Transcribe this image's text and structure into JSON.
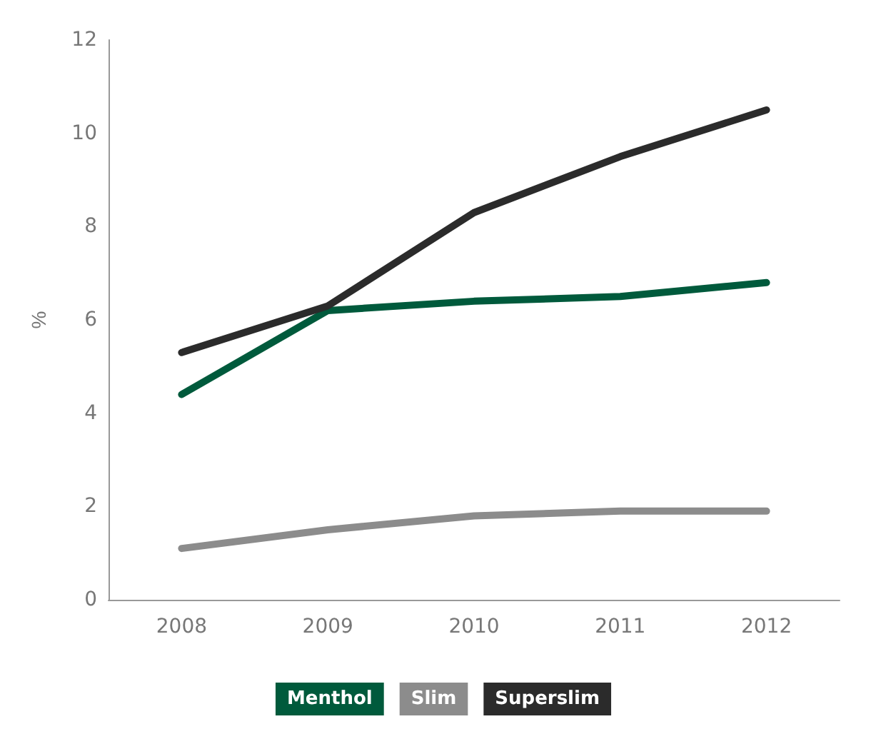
{
  "chart_data": {
    "type": "line",
    "ylabel": "%",
    "categories": [
      "2008",
      "2009",
      "2010",
      "2011",
      "2012"
    ],
    "series": [
      {
        "name": "Menthol",
        "color": "#005a3c",
        "values": [
          4.4,
          6.2,
          6.4,
          6.5,
          6.8
        ]
      },
      {
        "name": "Slim",
        "color": "#8c8c8c",
        "values": [
          1.1,
          1.5,
          1.8,
          1.9,
          1.9
        ]
      },
      {
        "name": "Superslim",
        "color": "#2b2b2b",
        "values": [
          5.3,
          6.3,
          8.3,
          9.5,
          10.5
        ]
      }
    ],
    "ylim": [
      0,
      12
    ],
    "yticks": [
      0,
      2,
      4,
      6,
      8,
      10,
      12
    ],
    "grid": false,
    "legend": "bottom",
    "marker": "none",
    "line_style": "solid"
  }
}
